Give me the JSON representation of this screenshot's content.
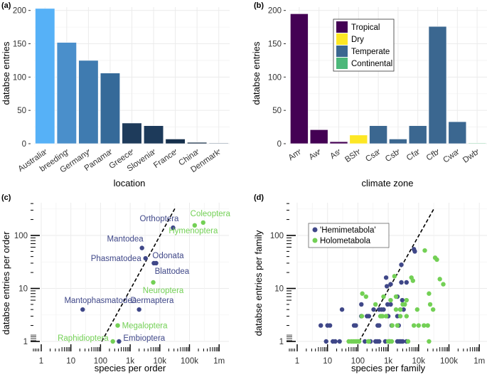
{
  "chart_data": [
    {
      "id": "a",
      "panel_label": "(a)",
      "type": "bar",
      "xlabel": "location",
      "ylabel": "databse entries",
      "ylim": [
        0,
        205
      ],
      "yticks": [
        0,
        50,
        100,
        150,
        200
      ],
      "grid": true,
      "categories": [
        "Australia",
        "breeding",
        "Germany",
        "Panama",
        "Greece",
        "Slovenia",
        "France",
        "China",
        "Denmark"
      ],
      "values": [
        203,
        152,
        125,
        106,
        31,
        27,
        7,
        2,
        1
      ],
      "colors": [
        "#56b1f7",
        "#4a8fcb",
        "#3f7bb0",
        "#356a99",
        "#1e3b5b",
        "#1d3a5a",
        "#16304c",
        "#132b45",
        "#2c4460"
      ]
    },
    {
      "id": "b",
      "panel_label": "(b)",
      "type": "bar",
      "xlabel": "climate zone",
      "ylabel": "databse entries",
      "ylim": [
        0,
        205
      ],
      "yticks": [
        0,
        50,
        100,
        150,
        200
      ],
      "grid": true,
      "legend_position": "top-center",
      "legend": [
        {
          "name": "Tropical",
          "color": "#440154"
        },
        {
          "name": "Dry",
          "color": "#fde725"
        },
        {
          "name": "Temperate",
          "color": "#3b6790"
        },
        {
          "name": "Continental",
          "color": "#4cb87a"
        }
      ],
      "categories": [
        "Am",
        "Aw",
        "As",
        "BSh",
        "Csa",
        "Csb",
        "Cfa",
        "Cfb",
        "Cwa",
        "Dwb"
      ],
      "values": [
        195,
        21,
        3,
        13,
        27,
        7,
        27,
        176,
        33,
        1
      ],
      "groups": [
        "Tropical",
        "Tropical",
        "Tropical",
        "Dry",
        "Temperate",
        "Temperate",
        "Temperate",
        "Temperate",
        "Temperate",
        "Continental"
      ]
    },
    {
      "id": "c",
      "panel_label": "(c)",
      "type": "scatter",
      "xlabel": "species per order",
      "ylabel": "databse entries per order",
      "xscale": "log",
      "yscale": "log",
      "xlim": [
        0.8,
        1500000
      ],
      "ylim": [
        0.9,
        400
      ],
      "xticks": [
        {
          "v": 1,
          "label": "1"
        },
        {
          "v": 10,
          "label": "10"
        },
        {
          "v": 100,
          "label": "100"
        },
        {
          "v": 1000,
          "label": "1k"
        },
        {
          "v": 10000,
          "label": "10k"
        },
        {
          "v": 100000,
          "label": "100k"
        },
        {
          "v": 1000000,
          "label": "1m"
        }
      ],
      "yticks": [
        {
          "v": 1,
          "label": "1"
        },
        {
          "v": 10,
          "label": "10"
        },
        {
          "v": 100,
          "label": "100"
        }
      ],
      "grid": true,
      "reference_line": {
        "style": "dashed",
        "from": [
          110,
          1
        ],
        "to": [
          33000,
          330
        ]
      },
      "groups": {
        "Hemimetabola": "#3f4788",
        "Holometabola": "#73d055"
      },
      "points": [
        {
          "label": "Orthoptera",
          "x": 28000,
          "y": 140,
          "group": "Hemimetabola",
          "label_pos": "top-left"
        },
        {
          "label": "Coleoptera",
          "x": 290000,
          "y": 175,
          "group": "Holometabola",
          "label_pos": "top"
        },
        {
          "label": "Hymenoptera",
          "x": 150000,
          "y": 155,
          "group": "Holometabola",
          "label_pos": "bottom"
        },
        {
          "label": "Mantodea",
          "x": 2500,
          "y": 58,
          "group": "Hemimetabola",
          "label_pos": "top-left"
        },
        {
          "label": "Phasmatodea",
          "x": 3300,
          "y": 37,
          "group": "Hemimetabola",
          "label_pos": "left"
        },
        {
          "label": "Odonata",
          "x": 6300,
          "y": 30,
          "group": "Hemimetabola",
          "label_pos": "top-right"
        },
        {
          "label": "Blattodea",
          "x": 7500,
          "y": 30,
          "group": "Hemimetabola",
          "label_pos": "bottom-right"
        },
        {
          "label": "Neuroptera",
          "x": 6000,
          "y": 13,
          "group": "Holometabola",
          "label_pos": "bottom"
        },
        {
          "label": "Mantophasmatodea",
          "x": 25,
          "y": 4,
          "group": "Hemimetabola",
          "label_pos": "top"
        },
        {
          "label": "Dermaptera",
          "x": 2000,
          "y": 4,
          "group": "Hemimetabola",
          "label_pos": "top-right"
        },
        {
          "label": "Megaloptera",
          "x": 380,
          "y": 2,
          "group": "Holometabola",
          "label_pos": "right"
        },
        {
          "label": "Raphidioptera",
          "x": 260,
          "y": 1,
          "group": "Holometabola",
          "label_pos": "left"
        },
        {
          "label": "Embioptera",
          "x": 420,
          "y": 1,
          "group": "Hemimetabola",
          "label_pos": "right"
        }
      ]
    },
    {
      "id": "d",
      "panel_label": "(d)",
      "type": "scatter",
      "xlabel": "species per family",
      "ylabel": "databse entries per family",
      "xscale": "log",
      "yscale": "log",
      "xlim": [
        0.8,
        1500000
      ],
      "ylim": [
        0.9,
        400
      ],
      "xticks": [
        {
          "v": 1,
          "label": "1"
        },
        {
          "v": 10,
          "label": "10"
        },
        {
          "v": 100,
          "label": "100"
        },
        {
          "v": 1000,
          "label": "1k"
        },
        {
          "v": 10000,
          "label": "10k"
        },
        {
          "v": 100000,
          "label": "100k"
        },
        {
          "v": 1000000,
          "label": "1m"
        }
      ],
      "yticks": [
        {
          "v": 1,
          "label": "1"
        },
        {
          "v": 10,
          "label": "10"
        },
        {
          "v": 100,
          "label": "100"
        }
      ],
      "grid": true,
      "legend_position": "top-left",
      "legend": [
        {
          "name": "'Hemimetabola'",
          "color": "#3f4788"
        },
        {
          "name": "Holometabola",
          "color": "#73d055"
        }
      ],
      "reference_line": {
        "style": "dashed",
        "from": [
          110,
          1
        ],
        "to": [
          33000,
          330
        ]
      },
      "series": [
        {
          "name": "'Hemimetabola'",
          "color": "#3f4788",
          "points": [
            [
              6,
              2
            ],
            [
              10,
              2
            ],
            [
              12,
              2
            ],
            [
              9,
              1
            ],
            [
              15,
              1
            ],
            [
              18,
              1
            ],
            [
              25,
              1
            ],
            [
              30,
              4
            ],
            [
              75,
              2
            ],
            [
              85,
              2
            ],
            [
              130,
              5
            ],
            [
              130,
              3
            ],
            [
              170,
              1
            ],
            [
              200,
              3
            ],
            [
              230,
              3
            ],
            [
              260,
              1
            ],
            [
              330,
              4
            ],
            [
              430,
              1
            ],
            [
              380,
              1
            ],
            [
              500,
              1
            ],
            [
              450,
              2
            ],
            [
              500,
              2
            ],
            [
              500,
              4
            ],
            [
              600,
              4
            ],
            [
              700,
              4
            ],
            [
              800,
              1
            ],
            [
              850,
              16
            ],
            [
              900,
              11
            ],
            [
              1000,
              3
            ],
            [
              950,
              5
            ],
            [
              1200,
              12
            ],
            [
              1200,
              5
            ],
            [
              1300,
              2
            ],
            [
              2000,
              7
            ],
            [
              2000,
              3
            ],
            [
              2200,
              2
            ],
            [
              2000,
              1
            ],
            [
              2300,
              1
            ],
            [
              2500,
              4
            ],
            [
              2700,
              28
            ],
            [
              2700,
              13
            ],
            [
              2900,
              6
            ],
            [
              3000,
              1
            ],
            [
              3200,
              4
            ],
            [
              4000,
              13
            ],
            [
              4000,
              1
            ],
            [
              7000,
              55
            ],
            [
              7500,
              50
            ],
            [
              1100,
              1
            ],
            [
              2600,
              1
            ]
          ]
        },
        {
          "name": "Holometabola",
          "color": "#73d055",
          "points": [
            [
              50,
              1
            ],
            [
              60,
              1
            ],
            [
              70,
              1
            ],
            [
              80,
              1
            ],
            [
              90,
              1
            ],
            [
              100,
              1
            ],
            [
              110,
              1
            ],
            [
              140,
              8
            ],
            [
              185,
              7
            ],
            [
              135,
              3
            ],
            [
              230,
              1
            ],
            [
              220,
              1
            ],
            [
              380,
              5
            ],
            [
              550,
              3
            ],
            [
              600,
              3
            ],
            [
              700,
              7
            ],
            [
              650,
              3
            ],
            [
              850,
              3
            ],
            [
              1000,
              1
            ],
            [
              1100,
              1
            ],
            [
              1300,
              1
            ],
            [
              1350,
              2
            ],
            [
              1200,
              6
            ],
            [
              1600,
              17
            ],
            [
              1800,
              7
            ],
            [
              1800,
              4
            ],
            [
              2000,
              2
            ],
            [
              2500,
              3
            ],
            [
              2500,
              4
            ],
            [
              3000,
              5
            ],
            [
              3500,
              5
            ],
            [
              4000,
              6
            ],
            [
              4000,
              3
            ],
            [
              4500,
              1
            ],
            [
              5800,
              16
            ],
            [
              6500,
              14
            ],
            [
              7000,
              2
            ],
            [
              9000,
              4
            ],
            [
              10000,
              2
            ],
            [
              15000,
              2
            ],
            [
              16000,
              52
            ],
            [
              20000,
              2
            ],
            [
              22000,
              8
            ],
            [
              24000,
              5
            ],
            [
              30000,
              4
            ],
            [
              35000,
              38
            ],
            [
              40000,
              35
            ],
            [
              50000,
              15
            ],
            [
              65000,
              12
            ],
            [
              22000,
              1
            ]
          ]
        }
      ]
    }
  ]
}
